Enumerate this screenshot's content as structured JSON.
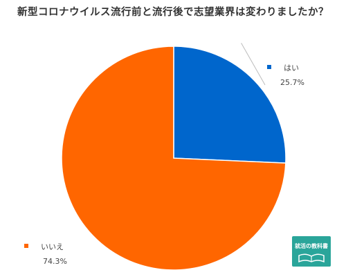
{
  "chart_data": {
    "type": "pie",
    "title": "新型コロナウイルス流行前と流行後で志望業界は変わりましたか？",
    "slices": [
      {
        "label": "はい",
        "value": 25.7,
        "value_label": "25.7%",
        "color": "#0066cc"
      },
      {
        "label": "いいえ",
        "value": 74.3,
        "value_label": "74.3%",
        "color": "#ff6600"
      }
    ],
    "start_angle": "top",
    "direction": "clockwise",
    "legend": "labels beside slices"
  },
  "logo": {
    "text": "就活の教科書"
  }
}
